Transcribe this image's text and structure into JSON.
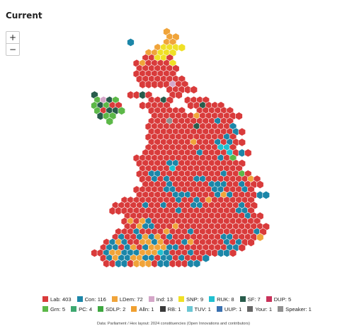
{
  "map": {
    "title": "Current",
    "zoom_in_label": "+",
    "zoom_out_label": "−",
    "source": "Data: Parliament / Hex layout: 2024 constituencies (Open Innovations and contributors)",
    "colors": {
      "lab": "#d93b3b",
      "con": "#1c86a8",
      "ldem": "#f0a43a",
      "ind": "#d4a6c8",
      "snp": "#f0e026",
      "ruk": "#20c0d0",
      "sf": "#285c4b",
      "dup": "#c9325a",
      "grn": "#5cb848",
      "pc": "#3ea870",
      "sdlp": "#3ea840",
      "alln": "#f0a030",
      "rb": "#3a3a3a",
      "tuv": "#6ac6d4",
      "uup": "#3a70b0",
      "your": "#666666",
      "speaker": "#909090"
    },
    "legend_rows": [
      [
        {
          "label": "Lab: 403",
          "party": "lab",
          "color": "#d93b3b"
        },
        {
          "label": "Con: 116",
          "party": "con",
          "color": "#1c86a8"
        },
        {
          "label": "LDem: 72",
          "party": "ldem",
          "color": "#f0a43a"
        },
        {
          "label": "Ind: 13",
          "party": "ind",
          "color": "#d4a6c8"
        },
        {
          "label": "SNP: 9",
          "party": "snp",
          "color": "#f0e026"
        },
        {
          "label": "RUK: 8",
          "party": "ruk",
          "color": "#20c0d0"
        },
        {
          "label": "SF: 7",
          "party": "sf",
          "color": "#285c4b"
        },
        {
          "label": "DUP: 5",
          "party": "dup",
          "color": "#c9325a"
        }
      ],
      [
        {
          "label": "Grn: 5",
          "party": "grn",
          "color": "#5cb848"
        },
        {
          "label": "PC: 4",
          "party": "pc",
          "color": "#3ea870"
        },
        {
          "label": "SDLP: 2",
          "party": "sdlp",
          "color": "#3ea840"
        },
        {
          "label": "Alln: 1",
          "party": "alln",
          "color": "#f0a030"
        },
        {
          "label": "RB: 1",
          "party": "rb",
          "color": "#3a3a3a"
        },
        {
          "label": "TUV: 1",
          "party": "tuv",
          "color": "#6ac6d4"
        },
        {
          "label": "UUP: 1",
          "party": "uup",
          "color": "#3a70b0"
        },
        {
          "label": "Your: 1",
          "party": "your",
          "color": "#666666"
        },
        {
          "label": "Speaker: 1",
          "party": "speaker",
          "color": "#909090"
        }
      ]
    ],
    "hex_rows": [
      {
        "row": 0,
        "start": 27,
        "cells": "a"
      },
      {
        "row": 1,
        "start": 27,
        "cells": "aa"
      },
      {
        "row": 2,
        "start": 21,
        "cells": "c.....aa"
      },
      {
        "row": 3,
        "start": 25,
        "cells": "aeeee"
      },
      {
        "row": 4,
        "start": 24,
        "cells": "aaeee"
      },
      {
        "row": 5,
        "start": 23,
        "cells": "lleel"
      },
      {
        "row": 6,
        "start": 22,
        "cells": "lalllle"
      },
      {
        "row": 7,
        "start": 22,
        "cells": "lllllll"
      },
      {
        "row": 8,
        "start": 22,
        "cells": "lllllll"
      },
      {
        "row": 9,
        "start": 22,
        "cells": "llllllll"
      },
      {
        "row": 10,
        "start": 23,
        "cells": "lllllbll"
      },
      {
        "row": 11,
        "start": 27,
        "cells": "lllll"
      },
      {
        "row": 12,
        "start": 15,
        "cells": "d.....lldl...ll"
      },
      {
        "row": 13,
        "start": 15,
        "cells": "gbdg.....lldl..llll"
      },
      {
        "row": 14,
        "start": 15,
        "cells": "gdgll...lllll...lldlll"
      },
      {
        "row": 15,
        "start": 15,
        "cells": "glddg....llllll..llllll"
      },
      {
        "row": 16,
        "start": 16,
        "cells": "dgg......lllllllalllllll"
      },
      {
        "row": 17,
        "start": 17,
        "cells": "g......lllxlllllllcll"
      },
      {
        "row": 18,
        "start": 24,
        "cells": "lllllllldlllllc"
      },
      {
        "row": 19,
        "start": 24,
        "cells": "llllllllllllllcl"
      },
      {
        "row": 20,
        "start": 24,
        "cells": "lllllllllllllcl"
      },
      {
        "row": 21,
        "start": 24,
        "cells": "lllllllalllclcll"
      },
      {
        "row": 22,
        "start": 24,
        "cells": "llllllllllllrrl"
      },
      {
        "row": 23,
        "start": 23,
        "cells": "lllllllllcllllrlcl"
      },
      {
        "row": 24,
        "start": 22,
        "cells": "llllllllllllllclg"
      },
      {
        "row": 25,
        "start": 22,
        "cells": "lllllcclllllllllll"
      },
      {
        "row": 26,
        "start": 23,
        "cells": "lllllrlllllllllll"
      },
      {
        "row": 27,
        "start": 22,
        "cells": "llccllllllllllcllgl"
      },
      {
        "row": 28,
        "start": 23,
        "cells": "llclcllllcclllllllal"
      },
      {
        "row": 29,
        "start": 23,
        "cells": "llllcllllllcccllclll"
      },
      {
        "row": 30,
        "start": 22,
        "cells": "lllllccllllllcclllcl"
      },
      {
        "row": 31,
        "start": 22,
        "cells": "llllllcccllllcacllllcc"
      },
      {
        "row": 32,
        "start": 20,
        "cells": "lllllllllcllclalllllll"
      },
      {
        "row": 33,
        "start": 18,
        "cells": "lllllcllcllllccllllllcll"
      },
      {
        "row": 34,
        "start": 18,
        "cells": "lllllllllllclllllllllccl"
      },
      {
        "row": 35,
        "start": 20,
        "cells": "llllllllllllllllllllcll"
      },
      {
        "row": 36,
        "start": 20,
        "cells": "lalacllllllllllllllllll"
      },
      {
        "row": 37,
        "start": 20,
        "cells": "llacclllalllllllllllllll"
      },
      {
        "row": 38,
        "start": 19,
        "cells": "lllcllllalllcllllllllllcl"
      },
      {
        "row": 39,
        "start": 18,
        "cells": "lcllcacalcllllllllcclllla"
      },
      {
        "row": 40,
        "start": 17,
        "cells": "lcacllaacalllcalllllclcll"
      },
      {
        "row": 41,
        "start": 16,
        "cells": "lcclcalcaaaccllllllllccl"
      },
      {
        "row": 42,
        "start": 15,
        "cells": "llcaacccaaarclllcllllccl"
      },
      {
        "row": 43,
        "start": 16,
        "cells": "lcaccaacclcclclllc"
      },
      {
        "row": 44,
        "start": 17,
        "cells": "llcclaaalcclllcc"
      }
    ]
  }
}
